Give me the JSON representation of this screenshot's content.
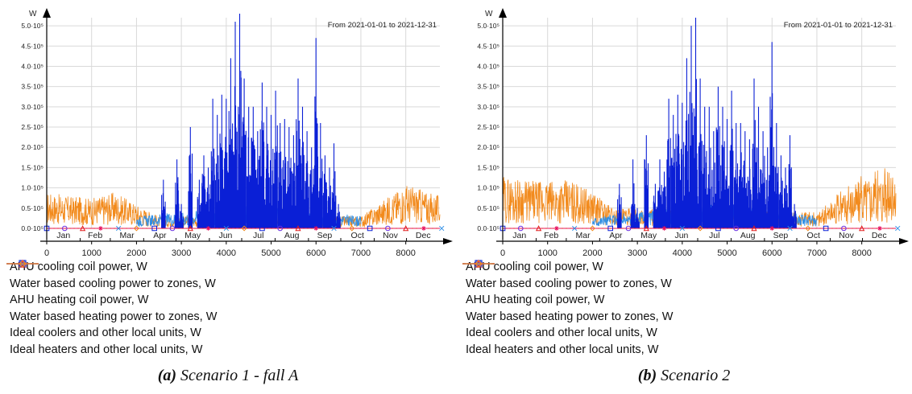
{
  "chart_data": [
    {
      "type": "line",
      "panel_label": "(a)",
      "caption": "Scenario 1 - fall A",
      "y_unit": "W",
      "date_range": "From 2021-01-01 to 2021-12-31",
      "ylim": [
        0,
        520000
      ],
      "xlim": [
        0,
        8760
      ],
      "y_ticks": [
        0,
        50000,
        100000,
        150000,
        200000,
        250000,
        300000,
        350000,
        400000,
        450000,
        500000
      ],
      "y_tick_labels": [
        "0.0·10⁵",
        "0.5·10⁵",
        "1.0·10⁵",
        "1.5·10⁵",
        "2.0·10⁵",
        "2.5·10⁵",
        "3.0·10⁵",
        "3.5·10⁵",
        "4.0·10⁵",
        "4.5·10⁵",
        "5.0·10⁵"
      ],
      "x_ticks": [
        0,
        1000,
        2000,
        3000,
        4000,
        5000,
        6000,
        7000,
        8000
      ],
      "x_tick_labels": [
        "0",
        "1000",
        "2000",
        "3000",
        "4000",
        "5000",
        "6000",
        "7000",
        "8000"
      ],
      "months": [
        "Jan",
        "Feb",
        "Mar",
        "Apr",
        "May",
        "Jun",
        "Jul",
        "Aug",
        "Sep",
        "Oct",
        "Nov",
        "Dec"
      ],
      "series": [
        {
          "name": "AHU cooling coil power, W",
          "color": "#0a1fd6",
          "style": "solid",
          "marker": "square",
          "x": [
            2600,
            2900,
            3000,
            3200,
            3400,
            3500,
            3600,
            3700,
            3800,
            3900,
            4000,
            4100,
            4200,
            4300,
            4400,
            4500,
            4600,
            4700,
            4800,
            4900,
            5000,
            5100,
            5200,
            5300,
            5400,
            5500,
            5600,
            5700,
            5800,
            5900,
            6000,
            6100,
            6200,
            6300,
            6400,
            6500
          ],
          "values": [
            120000,
            170000,
            60000,
            250000,
            120000,
            180000,
            150000,
            320000,
            280000,
            330000,
            320000,
            420000,
            510000,
            530000,
            370000,
            300000,
            300000,
            240000,
            360000,
            300000,
            280000,
            340000,
            260000,
            270000,
            250000,
            230000,
            370000,
            300000,
            240000,
            200000,
            470000,
            260000,
            180000,
            150000,
            210000,
            60000
          ]
        },
        {
          "name": "Water based cooling power to zones, W",
          "color": "#6a2ee0",
          "style": "dashed",
          "marker": "circle",
          "x": [
            0,
            8760
          ],
          "values": [
            0,
            0
          ]
        },
        {
          "name": "AHU heating coil power, W",
          "color": "#e21a1a",
          "style": "solid",
          "marker": "triangle",
          "x": [
            0,
            8760
          ],
          "values": [
            0,
            0
          ]
        },
        {
          "name": "Water based heating power to zones, W",
          "color": "#e8115e",
          "style": "dashed",
          "marker": "star",
          "x": [
            0,
            8760
          ],
          "values": [
            0,
            0
          ]
        },
        {
          "name": "Ideal coolers and other local units, W",
          "color": "#2f8fe6",
          "style": "solid",
          "marker": "cross",
          "x": [
            2000,
            3000,
            4000,
            5000,
            6000,
            7000
          ],
          "values": [
            30000,
            40000,
            55000,
            60000,
            45000,
            30000
          ]
        },
        {
          "name": "Ideal heaters and other local units, W",
          "color": "#f28a1c",
          "style": "solid",
          "marker": "diamond",
          "x": [
            0,
            500,
            1000,
            1500,
            2000,
            2500,
            7000,
            7500,
            8000,
            8500,
            8760
          ],
          "values": [
            90000,
            80000,
            75000,
            90000,
            60000,
            30000,
            30000,
            70000,
            110000,
            90000,
            80000
          ]
        }
      ]
    },
    {
      "type": "line",
      "panel_label": "(b)",
      "caption": "Scenario 2",
      "y_unit": "W",
      "date_range": "From 2021-01-01 to 2021-12-31",
      "ylim": [
        0,
        520000
      ],
      "xlim": [
        0,
        8760
      ],
      "y_ticks": [
        0,
        50000,
        100000,
        150000,
        200000,
        250000,
        300000,
        350000,
        400000,
        450000,
        500000
      ],
      "y_tick_labels": [
        "0.0·10⁵",
        "0.5·10⁵",
        "1.0·10⁵",
        "1.5·10⁵",
        "2.0·10⁵",
        "2.5·10⁵",
        "3.0·10⁵",
        "3.5·10⁵",
        "4.0·10⁵",
        "4.5·10⁵",
        "5.0·10⁵"
      ],
      "x_ticks": [
        0,
        1000,
        2000,
        3000,
        4000,
        5000,
        6000,
        7000,
        8000
      ],
      "x_tick_labels": [
        "0",
        "1000",
        "2000",
        "3000",
        "4000",
        "5000",
        "6000",
        "7000",
        "8000"
      ],
      "months": [
        "Jan",
        "Feb",
        "Mar",
        "Apr",
        "May",
        "Jun",
        "Jul",
        "Aug",
        "Sep",
        "Oct",
        "Nov",
        "Dec"
      ],
      "series": [
        {
          "name": "AHU cooling coil power, W",
          "color": "#0a1fd6",
          "style": "solid",
          "marker": "square",
          "x": [
            2600,
            2900,
            3000,
            3200,
            3400,
            3500,
            3600,
            3700,
            3800,
            3900,
            4000,
            4100,
            4200,
            4300,
            4400,
            4500,
            4600,
            4700,
            4800,
            4900,
            5000,
            5100,
            5200,
            5300,
            5400,
            5500,
            5600,
            5700,
            5800,
            5900,
            6000,
            6100,
            6200,
            6300,
            6400,
            6500
          ],
          "values": [
            110000,
            170000,
            50000,
            230000,
            110000,
            170000,
            140000,
            320000,
            280000,
            330000,
            310000,
            420000,
            500000,
            520000,
            370000,
            300000,
            300000,
            240000,
            350000,
            300000,
            270000,
            340000,
            260000,
            260000,
            240000,
            220000,
            370000,
            300000,
            240000,
            200000,
            460000,
            260000,
            180000,
            150000,
            230000,
            60000
          ]
        },
        {
          "name": "Water based cooling power to zones, W",
          "color": "#6a2ee0",
          "style": "dashed",
          "marker": "circle",
          "x": [
            0,
            8760
          ],
          "values": [
            0,
            0
          ]
        },
        {
          "name": "AHU heating coil power, W",
          "color": "#e21a1a",
          "style": "solid",
          "marker": "triangle",
          "x": [
            0,
            8760
          ],
          "values": [
            0,
            0
          ]
        },
        {
          "name": "Water based heating power to zones, W",
          "color": "#e8115e",
          "style": "dashed",
          "marker": "star",
          "x": [
            0,
            8760
          ],
          "values": [
            0,
            0
          ]
        },
        {
          "name": "Ideal coolers and other local units, W",
          "color": "#2f8fe6",
          "style": "solid",
          "marker": "cross",
          "x": [
            2000,
            3000,
            4000,
            5000,
            6000,
            7000
          ],
          "values": [
            30000,
            40000,
            55000,
            60000,
            45000,
            30000
          ]
        },
        {
          "name": "Ideal heaters and other local units, W",
          "color": "#f28a1c",
          "style": "solid",
          "marker": "diamond",
          "x": [
            0,
            500,
            1000,
            1500,
            2000,
            2500,
            7000,
            7500,
            8000,
            8500,
            8760
          ],
          "values": [
            130000,
            120000,
            115000,
            120000,
            90000,
            50000,
            40000,
            90000,
            130000,
            150000,
            120000
          ]
        }
      ]
    }
  ]
}
